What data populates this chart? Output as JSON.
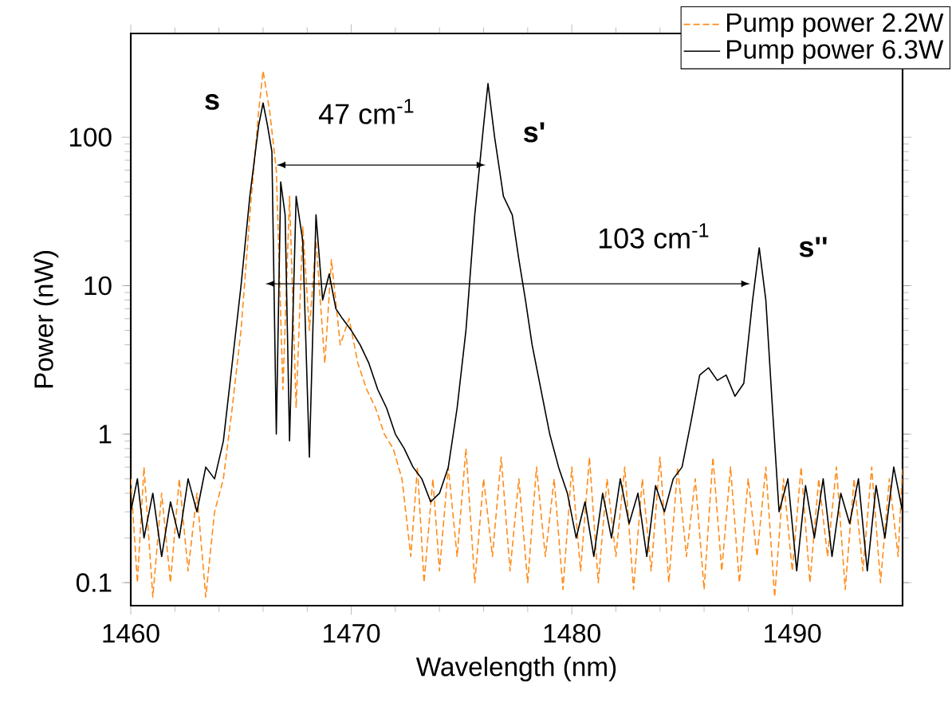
{
  "chart_data": {
    "type": "line",
    "xlabel": "Wavelength (nm)",
    "ylabel": "Power (nW)",
    "xlim": [
      1460,
      1495
    ],
    "xticks": [
      1460,
      1470,
      1480,
      1490
    ],
    "ylim": [
      0.07,
      500
    ],
    "yticks": [
      0.1,
      1,
      10,
      100
    ],
    "log": "y",
    "grid": false,
    "legend": "top right",
    "marker": "none",
    "series": [
      {
        "name": "Pump power 2.2W",
        "color": "#ff8c1a",
        "line_style": "dashed",
        "x": [
          1460,
          1460.3,
          1460.6,
          1461,
          1461.4,
          1461.8,
          1462.2,
          1462.6,
          1463,
          1463.4,
          1463.8,
          1464.2,
          1464.6,
          1465,
          1465.4,
          1465.8,
          1466,
          1466.3,
          1466.6,
          1466.9,
          1467.2,
          1467.5,
          1467.8,
          1468.1,
          1468.4,
          1468.8,
          1469.1,
          1469.5,
          1469.9,
          1470.3,
          1470.7,
          1471.1,
          1471.5,
          1471.9,
          1472.3,
          1472.7,
          1473,
          1473.3,
          1473.7,
          1474,
          1474.4,
          1474.8,
          1475.2,
          1475.6,
          1476,
          1476.4,
          1476.8,
          1477.2,
          1477.6,
          1478,
          1478.4,
          1478.8,
          1479.2,
          1479.6,
          1480,
          1480.4,
          1480.8,
          1481.2,
          1481.6,
          1482,
          1482.4,
          1482.8,
          1483.2,
          1483.6,
          1484,
          1484.4,
          1484.8,
          1485.2,
          1485.6,
          1486,
          1486.4,
          1486.8,
          1487.2,
          1487.6,
          1488,
          1488.4,
          1488.8,
          1489.2,
          1489.6,
          1490,
          1490.4,
          1490.8,
          1491.2,
          1491.6,
          1492,
          1492.4,
          1492.8,
          1493.2,
          1493.6,
          1494,
          1494.4,
          1494.8,
          1495
        ],
        "values": [
          0.5,
          0.1,
          0.6,
          0.08,
          0.4,
          0.1,
          0.5,
          0.12,
          0.4,
          0.08,
          0.3,
          0.5,
          1.5,
          5,
          30,
          150,
          280,
          150,
          60,
          2,
          40,
          1.5,
          25,
          5,
          20,
          3,
          15,
          4,
          6,
          3,
          2,
          1.5,
          1,
          0.8,
          0.5,
          0.15,
          0.6,
          0.1,
          0.5,
          0.12,
          0.6,
          0.15,
          0.8,
          0.1,
          0.5,
          0.15,
          0.7,
          0.12,
          0.5,
          0.1,
          0.6,
          0.15,
          0.5,
          0.09,
          0.6,
          0.12,
          0.7,
          0.1,
          0.5,
          0.15,
          0.6,
          0.09,
          0.5,
          0.12,
          0.7,
          0.1,
          0.6,
          0.15,
          0.5,
          0.09,
          0.7,
          0.12,
          0.6,
          0.1,
          0.5,
          0.15,
          0.6,
          0.08,
          0.5,
          0.12,
          0.6,
          0.1,
          0.5,
          0.15,
          0.6,
          0.09,
          0.5,
          0.12,
          0.6,
          0.1,
          0.5,
          0.15,
          0.6
        ]
      },
      {
        "name": "Pump power 6.3W",
        "color": "#000000",
        "line_style": "solid",
        "x": [
          1460,
          1460.3,
          1460.6,
          1461,
          1461.4,
          1461.8,
          1462.2,
          1462.6,
          1463,
          1463.4,
          1463.8,
          1464.2,
          1464.6,
          1465,
          1465.4,
          1465.8,
          1466,
          1466.2,
          1466.4,
          1466.6,
          1466.8,
          1467,
          1467.2,
          1467.5,
          1467.8,
          1468.1,
          1468.4,
          1468.7,
          1469,
          1469.3,
          1469.6,
          1470,
          1470.4,
          1470.8,
          1471.2,
          1471.6,
          1472,
          1472.4,
          1472.8,
          1473.2,
          1473.6,
          1474,
          1474.4,
          1474.8,
          1475.2,
          1475.6,
          1476,
          1476.2,
          1476.5,
          1476.9,
          1477.3,
          1477.6,
          1477.9,
          1478.2,
          1478.6,
          1479,
          1479.4,
          1479.8,
          1480.2,
          1480.6,
          1481,
          1481.4,
          1481.8,
          1482.2,
          1482.6,
          1483,
          1483.4,
          1483.8,
          1484.2,
          1484.6,
          1485,
          1485.4,
          1485.8,
          1486.2,
          1486.6,
          1487,
          1487.4,
          1487.8,
          1488.2,
          1488.5,
          1488.8,
          1489.1,
          1489.4,
          1489.8,
          1490.2,
          1490.6,
          1491,
          1491.4,
          1491.8,
          1492.2,
          1492.6,
          1493,
          1493.4,
          1493.8,
          1494.2,
          1494.6,
          1495
        ],
        "values": [
          0.3,
          0.5,
          0.2,
          0.4,
          0.15,
          0.35,
          0.2,
          0.5,
          0.3,
          0.6,
          0.5,
          0.9,
          3,
          10,
          40,
          120,
          170,
          120,
          80,
          1,
          50,
          30,
          0.9,
          40,
          20,
          0.7,
          30,
          8,
          12,
          7,
          6,
          5,
          4,
          3,
          2,
          1.5,
          1,
          0.8,
          0.6,
          0.5,
          0.35,
          0.4,
          0.6,
          1.5,
          5,
          30,
          120,
          230,
          100,
          40,
          30,
          15,
          8,
          4,
          2,
          1,
          0.6,
          0.4,
          0.2,
          0.35,
          0.15,
          0.4,
          0.2,
          0.5,
          0.25,
          0.4,
          0.15,
          0.45,
          0.3,
          0.5,
          0.6,
          1.2,
          2.5,
          2.8,
          2.3,
          2.5,
          1.8,
          2.2,
          8,
          18,
          8,
          1.5,
          0.3,
          0.5,
          0.12,
          0.45,
          0.2,
          0.5,
          0.15,
          0.4,
          0.25,
          0.5,
          0.12,
          0.45,
          0.2,
          0.6,
          0.3
        ]
      }
    ],
    "annotations": [
      "**s**",
      "47 cm$^{-1}$",
      "**s'**",
      "103 cm$^{-1}$",
      "**s''**"
    ]
  }
}
